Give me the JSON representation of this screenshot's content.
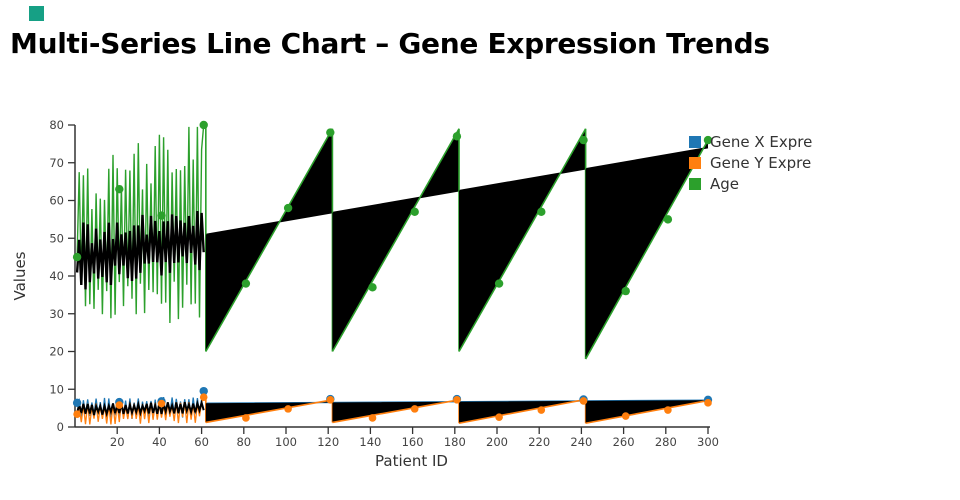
{
  "page": {
    "accent_color": "#16a085"
  },
  "title": "Multi-Series Line Chart – Gene Expression Trends",
  "chart_data": {
    "type": "line",
    "title": "Multi-Series Line Chart – Gene Expression Trends",
    "xlabel": "Patient ID",
    "ylabel": "Values",
    "xlim": [
      0,
      300
    ],
    "ylim": [
      0,
      80
    ],
    "xticks": [
      20,
      40,
      60,
      80,
      100,
      120,
      140,
      160,
      180,
      200,
      220,
      240,
      260,
      280,
      300
    ],
    "yticks": [
      0,
      10,
      20,
      30,
      40,
      50,
      60,
      70,
      80
    ],
    "grid": false,
    "legend": {
      "position": "top-right",
      "entries": [
        {
          "label": "Gene X Expre",
          "color": "#1f77b4"
        },
        {
          "label": "Gene Y Expre",
          "color": "#ff7f0e"
        },
        {
          "label": "Age",
          "color": "#2ca02c"
        }
      ]
    },
    "series": [
      {
        "name": "Gene X Expression",
        "legend_label": "Gene X Expre",
        "color": "#1f77b4",
        "noise": {
          "x_start": 1,
          "x_end": 61,
          "mid": [
            5.0,
            5.6
          ],
          "up": [
            1.1,
            2.6
          ],
          "down": [
            1.5,
            3.2
          ],
          "first": 6.4,
          "last": 9.5,
          "clamp": [
            1.9,
            8.2
          ],
          "seed": 3
        },
        "trend": {
          "from": [
            62,
            6.3
          ],
          "to": [
            300,
            7.1
          ]
        },
        "markers": [
          [
            1,
            6.4
          ],
          [
            21,
            6.6
          ],
          [
            41,
            6.8
          ],
          [
            61,
            9.5
          ],
          [
            121,
            7.4
          ],
          [
            181,
            7.4
          ],
          [
            241,
            7.3
          ],
          [
            300,
            7.2
          ]
        ]
      },
      {
        "name": "Gene Y Expression",
        "legend_label": "Gene Y Expre",
        "color": "#ff7f0e",
        "noise": {
          "x_start": 1,
          "x_end": 61,
          "mid": [
            4.2,
            4.8
          ],
          "up": [
            0.9,
            2.2
          ],
          "down": [
            1.8,
            3.9
          ],
          "first": 3.4,
          "last": 7.9,
          "clamp": [
            0.7,
            6.6
          ],
          "seed": 23
        },
        "core": {
          "mid": [
            4.6,
            5.2
          ],
          "amp": [
            0.6,
            1.6
          ],
          "color": "#000000"
        },
        "sawtooth": {
          "fill": "#000000",
          "fill_to": "genex-trend",
          "segments": [
            [
              62,
              122,
              1.2,
              7.2
            ],
            [
              122,
              182,
              1.2,
              7.2
            ],
            [
              182,
              242,
              1.0,
              7.3
            ],
            [
              242,
              300,
              1.0,
              7.0
            ]
          ]
        },
        "markers": [
          [
            1,
            3.4
          ],
          [
            21,
            5.8
          ],
          [
            41,
            6.2
          ],
          [
            61,
            7.9
          ],
          [
            81,
            2.4
          ],
          [
            101,
            4.8
          ],
          [
            121,
            7.2
          ],
          [
            141,
            2.4
          ],
          [
            161,
            4.8
          ],
          [
            181,
            7.2
          ],
          [
            201,
            2.6
          ],
          [
            221,
            4.5
          ],
          [
            241,
            6.9
          ],
          [
            261,
            2.9
          ],
          [
            281,
            4.5
          ],
          [
            300,
            6.4
          ]
        ]
      },
      {
        "name": "Age",
        "legend_label": "Age",
        "color": "#2ca02c",
        "noise": {
          "x_start": 1,
          "x_end": 61,
          "mid": [
            45,
            50
          ],
          "up": [
            13,
            28
          ],
          "down": [
            8,
            18
          ],
          "up_scale": [
            0.8,
            1.25
          ],
          "down_scale": [
            0.85,
            1.35
          ],
          "first": 45,
          "last": 80,
          "clamp": [
            21,
            79.5
          ],
          "seed": 0
        },
        "core": {
          "mid": [
            45,
            50
          ],
          "amp": [
            3,
            9
          ],
          "color": "#000000"
        },
        "baseline": {
          "from": [
            62,
            51
          ],
          "to": [
            300,
            74
          ],
          "color": "#000000"
        },
        "sawtooth": {
          "fill": "#000000",
          "fill_to": "baseline",
          "segments": [
            [
              62,
              122,
              20,
              79
            ],
            [
              122,
              182,
              20,
              79
            ],
            [
              182,
              242,
              20,
              79
            ],
            [
              242,
              300,
              18,
              76
            ]
          ]
        },
        "markers": [
          [
            1,
            45
          ],
          [
            21,
            63
          ],
          [
            41,
            56
          ],
          [
            61,
            80
          ],
          [
            81,
            38
          ],
          [
            101,
            58
          ],
          [
            121,
            78
          ],
          [
            141,
            37
          ],
          [
            161,
            57
          ],
          [
            181,
            77
          ],
          [
            201,
            38
          ],
          [
            221,
            57
          ],
          [
            241,
            76
          ],
          [
            261,
            36
          ],
          [
            281,
            55
          ],
          [
            300,
            76
          ]
        ]
      }
    ]
  }
}
